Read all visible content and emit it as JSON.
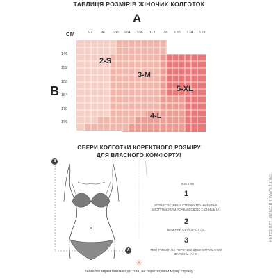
{
  "header": {
    "title": "ТАБЛИЦЯ РОЗМІРІВ ЖІНОЧИХ КОЛГОТОК",
    "axis_a": "A",
    "axis_b": "B",
    "unit": "CM"
  },
  "size_chart": {
    "x_ticks": [
      "92",
      "96",
      "100",
      "104",
      "108",
      "112",
      "116",
      "120",
      "124",
      "128"
    ],
    "y_ticks": [
      "146",
      "152",
      "158",
      "164",
      "170",
      "176"
    ],
    "zones": [
      "2-S",
      "3-M",
      "5-XL",
      "4-L"
    ],
    "colors": {
      "2-S": "#f5cfc6",
      "3-M": "#efb6ab",
      "4-L": "#ea9d93",
      "5-XL": "#e7797a",
      "grid": "#ffffff"
    }
  },
  "guide": {
    "heading_line1": "ОБЕРИ КОЛГОТКИ КОРЕКТНОГО РОЗМІРУ",
    "heading_line2": "ДЛЯ ВЛАСНОГО КОМФОРТУ!",
    "marker_b": "B",
    "marker_a": "A",
    "side_label": "колготки",
    "steps": [
      {
        "number": "1",
        "text_line1": "РОЗМІСТИ МІРНУ СТРІЧКУ ПО НАЙБІЛЬШ",
        "text_line2": "ВИСТУПАЮЧИМ ТОЧКАМ СВОЇХ СІДНИЦЬ (A)."
      },
      {
        "number": "2",
        "text_line1": "ВИМІРЯЙ СВІЙ ЗРІСТ (B).",
        "text_line2": ""
      },
      {
        "number": "3",
        "text_line1": "ТВІЙ РОЗМІР НА ПЕРЕТИНІ ДВОХ ОТРИМАНИХ",
        "text_line2": "ЗНАЧЕНЬ (A+B)."
      }
    ],
    "footer_note": "Знімайте мірки близько до тіла, не перетягуючи мірну стрічку."
  },
  "watermark": "интернет-магазин www.f.ua®"
}
